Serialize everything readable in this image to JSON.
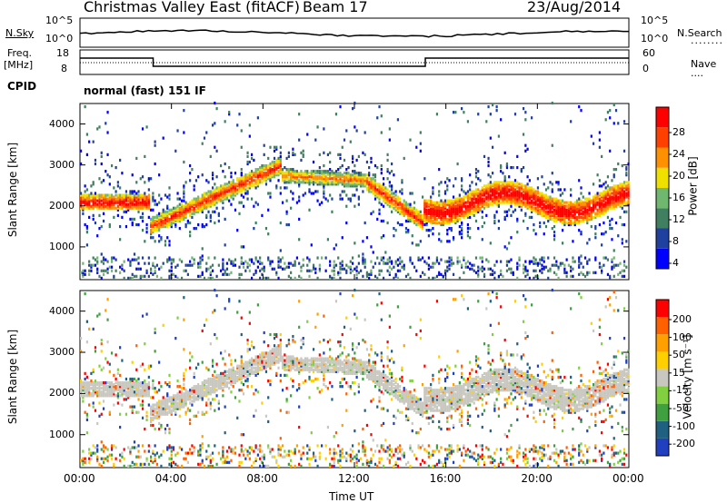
{
  "header": {
    "title": "Christmas Valley East (fitACF)",
    "beam": "Beam 17",
    "date": "23/Aug/2014"
  },
  "aux": {
    "nsky_label": "N.Sky",
    "nsearch_label": "N.Search",
    "noise_ticks": [
      "10^5",
      "10^0"
    ],
    "freq_label_1": "Freq.",
    "freq_label_2": "[MHz]",
    "freq_ticks": [
      "18",
      "8"
    ],
    "nave_label": "Nave",
    "nave_ticks": [
      "60",
      "0"
    ],
    "cpid_label": "CPID",
    "cpid_value": "normal (fast) 151 IF"
  },
  "colors": {
    "power": [
      "#0000ff",
      "#2040a0",
      "#408060",
      "#70b870",
      "#f0e000",
      "#ff9000",
      "#ff4000",
      "#ff0000"
    ],
    "velocity": [
      "#2040c0",
      "#206080",
      "#40a040",
      "#80d040",
      "#c8c8c0",
      "#ffd000",
      "#ffa000",
      "#ff6000",
      "#ff0000"
    ]
  },
  "chart_data": [
    {
      "type": "heatmap",
      "ylabel": "Slant Range [km]",
      "y_ticks": [
        "4000",
        "3000",
        "2000",
        "1000"
      ],
      "ylim": [
        200,
        4500
      ],
      "xlim": [
        0,
        24
      ],
      "colorbar_label": "Power [dB]",
      "colorbar_ticks": [
        "28",
        "24",
        "20",
        "16",
        "12",
        "8",
        "4"
      ],
      "colorbar_range": [
        0,
        30
      ]
    },
    {
      "type": "heatmap",
      "ylabel": "Slant Range [km]",
      "y_ticks": [
        "4000",
        "3000",
        "2000",
        "1000"
      ],
      "ylim": [
        200,
        4500
      ],
      "xlim": [
        0,
        24
      ],
      "xlabel": "Time UT",
      "x_ticks": [
        "00:00",
        "04:00",
        "08:00",
        "12:00",
        "16:00",
        "20:00",
        "00:00"
      ],
      "colorbar_label": "Velocity [m s⁻¹]",
      "colorbar_ticks": [
        "200",
        "100",
        "50",
        "15",
        "-15",
        "-50",
        "-100",
        "-200"
      ]
    }
  ]
}
